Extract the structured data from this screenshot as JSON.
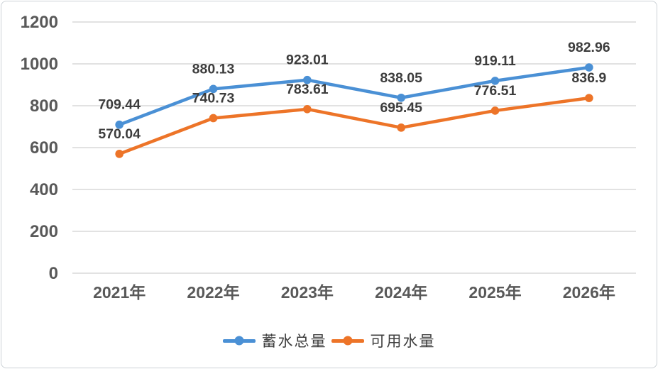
{
  "chart_data": {
    "type": "line",
    "categories": [
      "2021年",
      "2022年",
      "2023年",
      "2024年",
      "2025年",
      "2026年"
    ],
    "series": [
      {
        "name": "蓄水总量",
        "color": "#4a90d5",
        "values": [
          709.44,
          880.13,
          923.01,
          838.05,
          919.11,
          982.96
        ],
        "labels": [
          "709.44",
          "880.13",
          "923.01",
          "838.05",
          "919.11",
          "982.96"
        ]
      },
      {
        "name": "可用水量",
        "color": "#ed7428",
        "values": [
          570.04,
          740.73,
          783.61,
          695.45,
          776.51,
          836.9
        ],
        "labels": [
          "570.04",
          "740.73",
          "783.61",
          "695.45",
          "776.51",
          "836.9"
        ]
      }
    ],
    "y_ticks": [
      0,
      200,
      400,
      600,
      800,
      1000,
      1200
    ],
    "ylim": [
      0,
      1200
    ],
    "grid": "horizontal",
    "legend_position": "bottom",
    "data_labels_shown": true
  },
  "colors": {
    "grid": "#d9d9d9",
    "axis_text": "#595959",
    "data_label_text": "#3d3d3d",
    "background": "#ffffff",
    "frame_border": "#ccd1d6"
  }
}
